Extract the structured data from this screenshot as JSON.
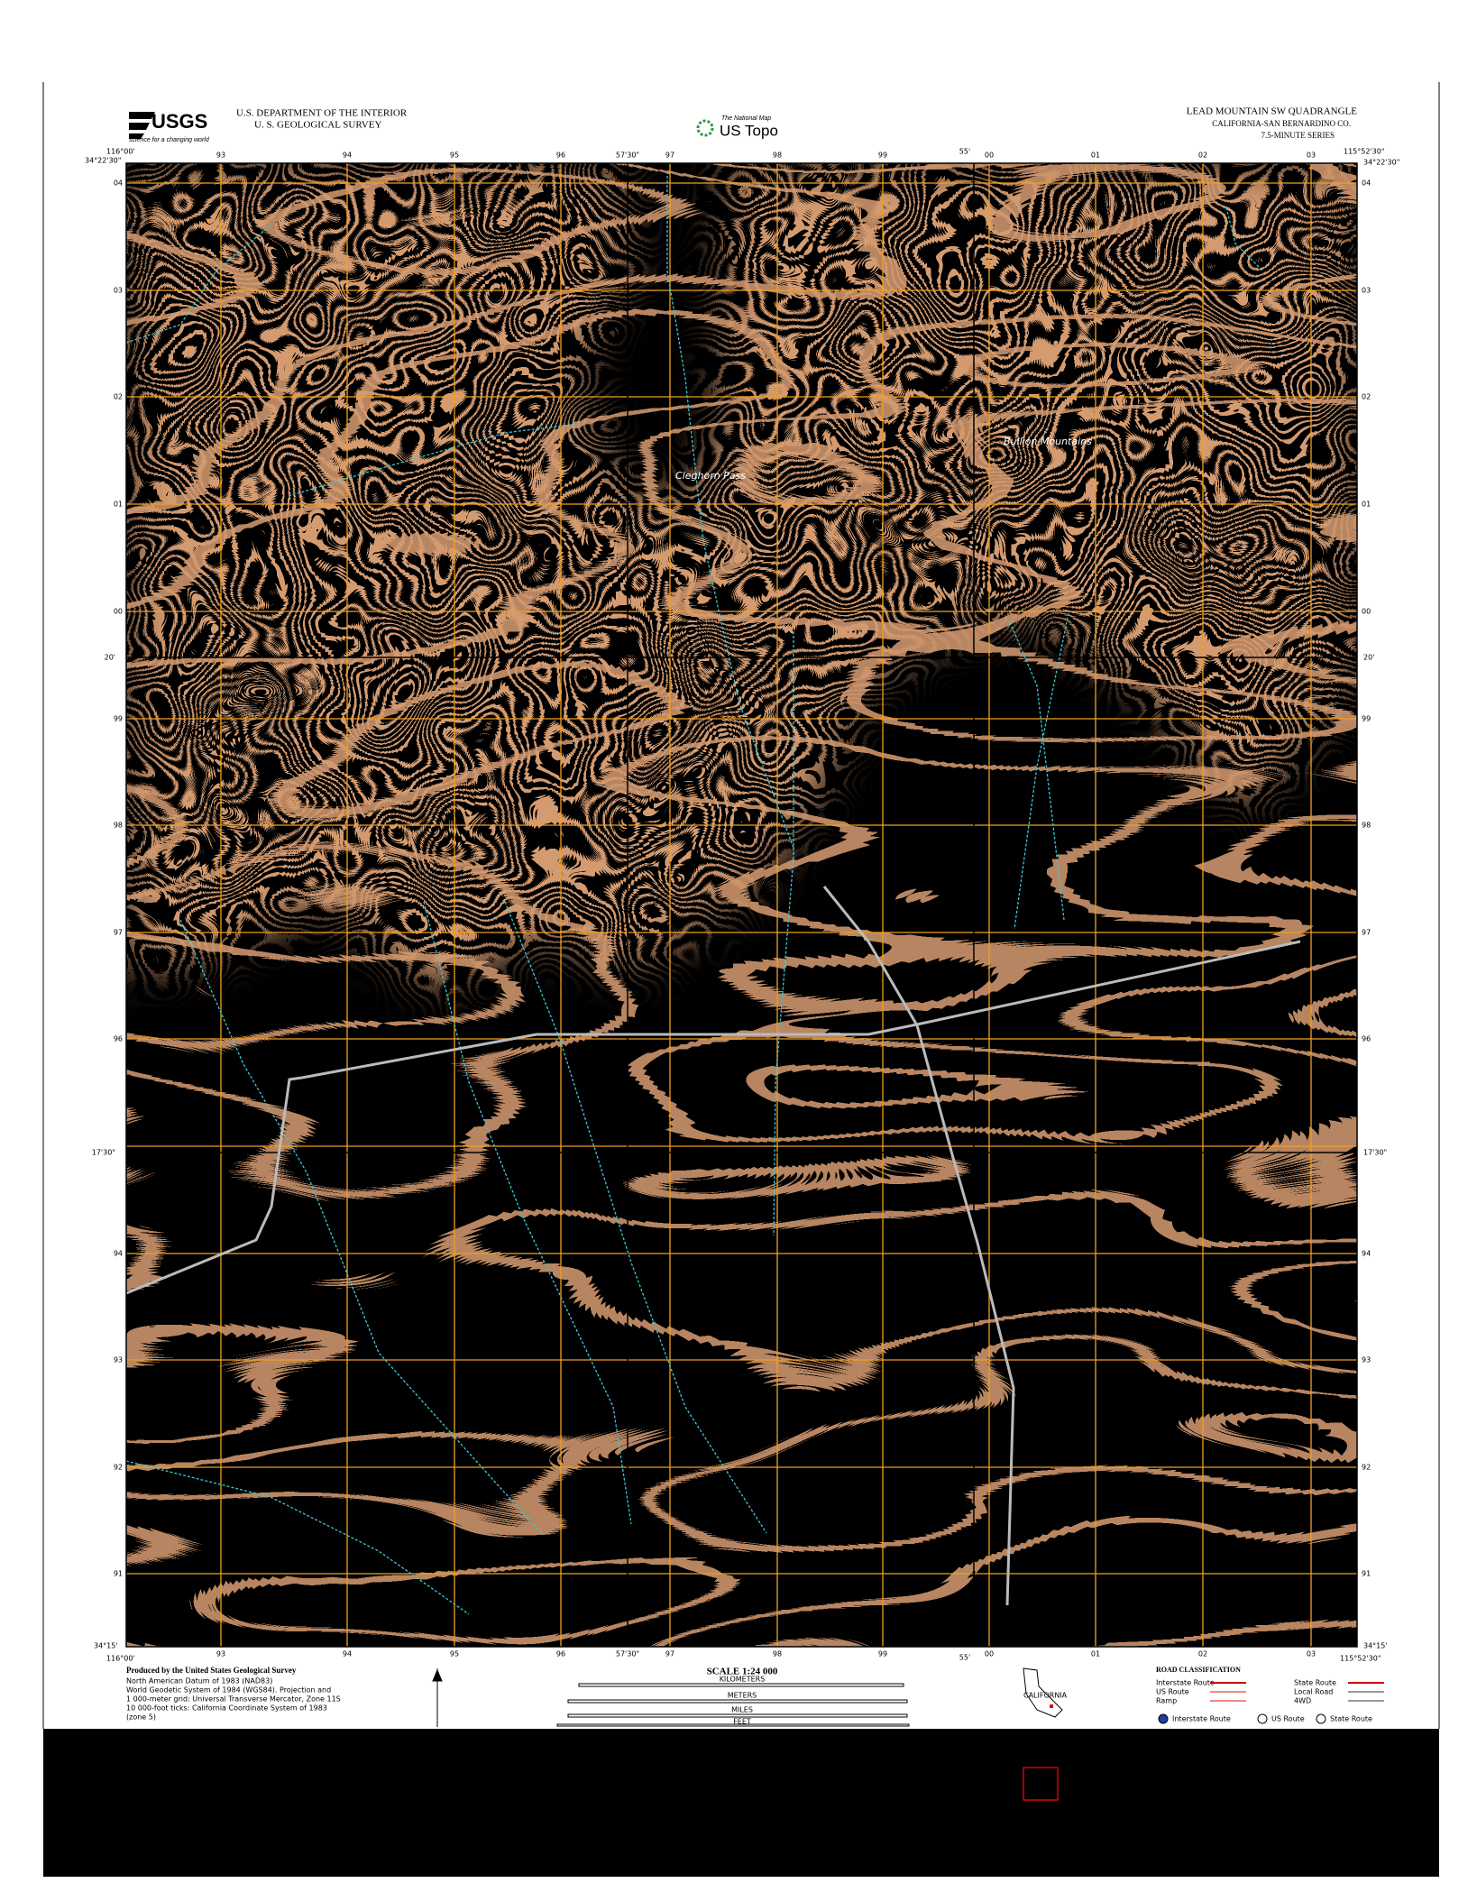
{
  "header": {
    "logo": "USGS",
    "logo_tagline": "science for a changing world",
    "agency": [
      "U.S. DEPARTMENT OF THE INTERIOR",
      "U. S. GEOLOGICAL SURVEY"
    ],
    "product_tag": "The National Map",
    "product": "US Topo",
    "title": "LEAD MOUNTAIN SW QUADRANGLE",
    "region": "CALIFORNIA-SAN BERNARDINO CO.",
    "series": "7.5-MINUTE SERIES"
  },
  "map": {
    "corners": {
      "top_left_lon": "116°00'",
      "top_left_lat": "34°22'30\"",
      "top_right_lon": "115°52'30\"",
      "top_right_lat": "34°22'30\"",
      "bottom_left_lat": "34°15'",
      "bottom_left_lon": "116°00'",
      "bottom_right_lat": "34°15'",
      "bottom_right_lon": "115°52'30\""
    },
    "edge_labels": [
      "57'30\"",
      "55'",
      "20'",
      "17'30\"",
      "57'30\"",
      "55'",
      "20'",
      "17'30\""
    ],
    "easting_labels": [
      "93",
      "94",
      "95",
      "96",
      "97",
      "98",
      "99",
      "00",
      "01",
      "02",
      "03"
    ],
    "northing_labels": [
      "04",
      "03",
      "02",
      "01",
      "00",
      "99",
      "98",
      "97",
      "96",
      "94",
      "93",
      "92",
      "91"
    ],
    "places": [
      "Cleghorn Pass",
      "Bullion Mountains"
    ]
  },
  "footer": {
    "credits": [
      "Produced by the United States Geological Survey",
      "North American Datum of 1983 (NAD83)",
      "World Geodetic System of 1984 (WGS84). Projection and",
      "1 000-meter grid: Universal Transverse Mercator, Zone 11S",
      "10 000-foot ticks: California Coordinate System of 1983",
      "(zone 5)"
    ],
    "scale": {
      "title": "SCALE 1:24 000",
      "units": [
        "KILOMETERS",
        "METERS",
        "MILES",
        "FEET"
      ]
    },
    "inset": "CALIFORNIA",
    "road_classification": {
      "title": "ROAD CLASSIFICATION",
      "items": [
        "Interstate Route",
        "State Route",
        "US Route",
        "Local Road",
        "Ramp",
        "4WD"
      ],
      "symbols": [
        "Interstate Route",
        "US Route",
        "State Route"
      ]
    }
  }
}
